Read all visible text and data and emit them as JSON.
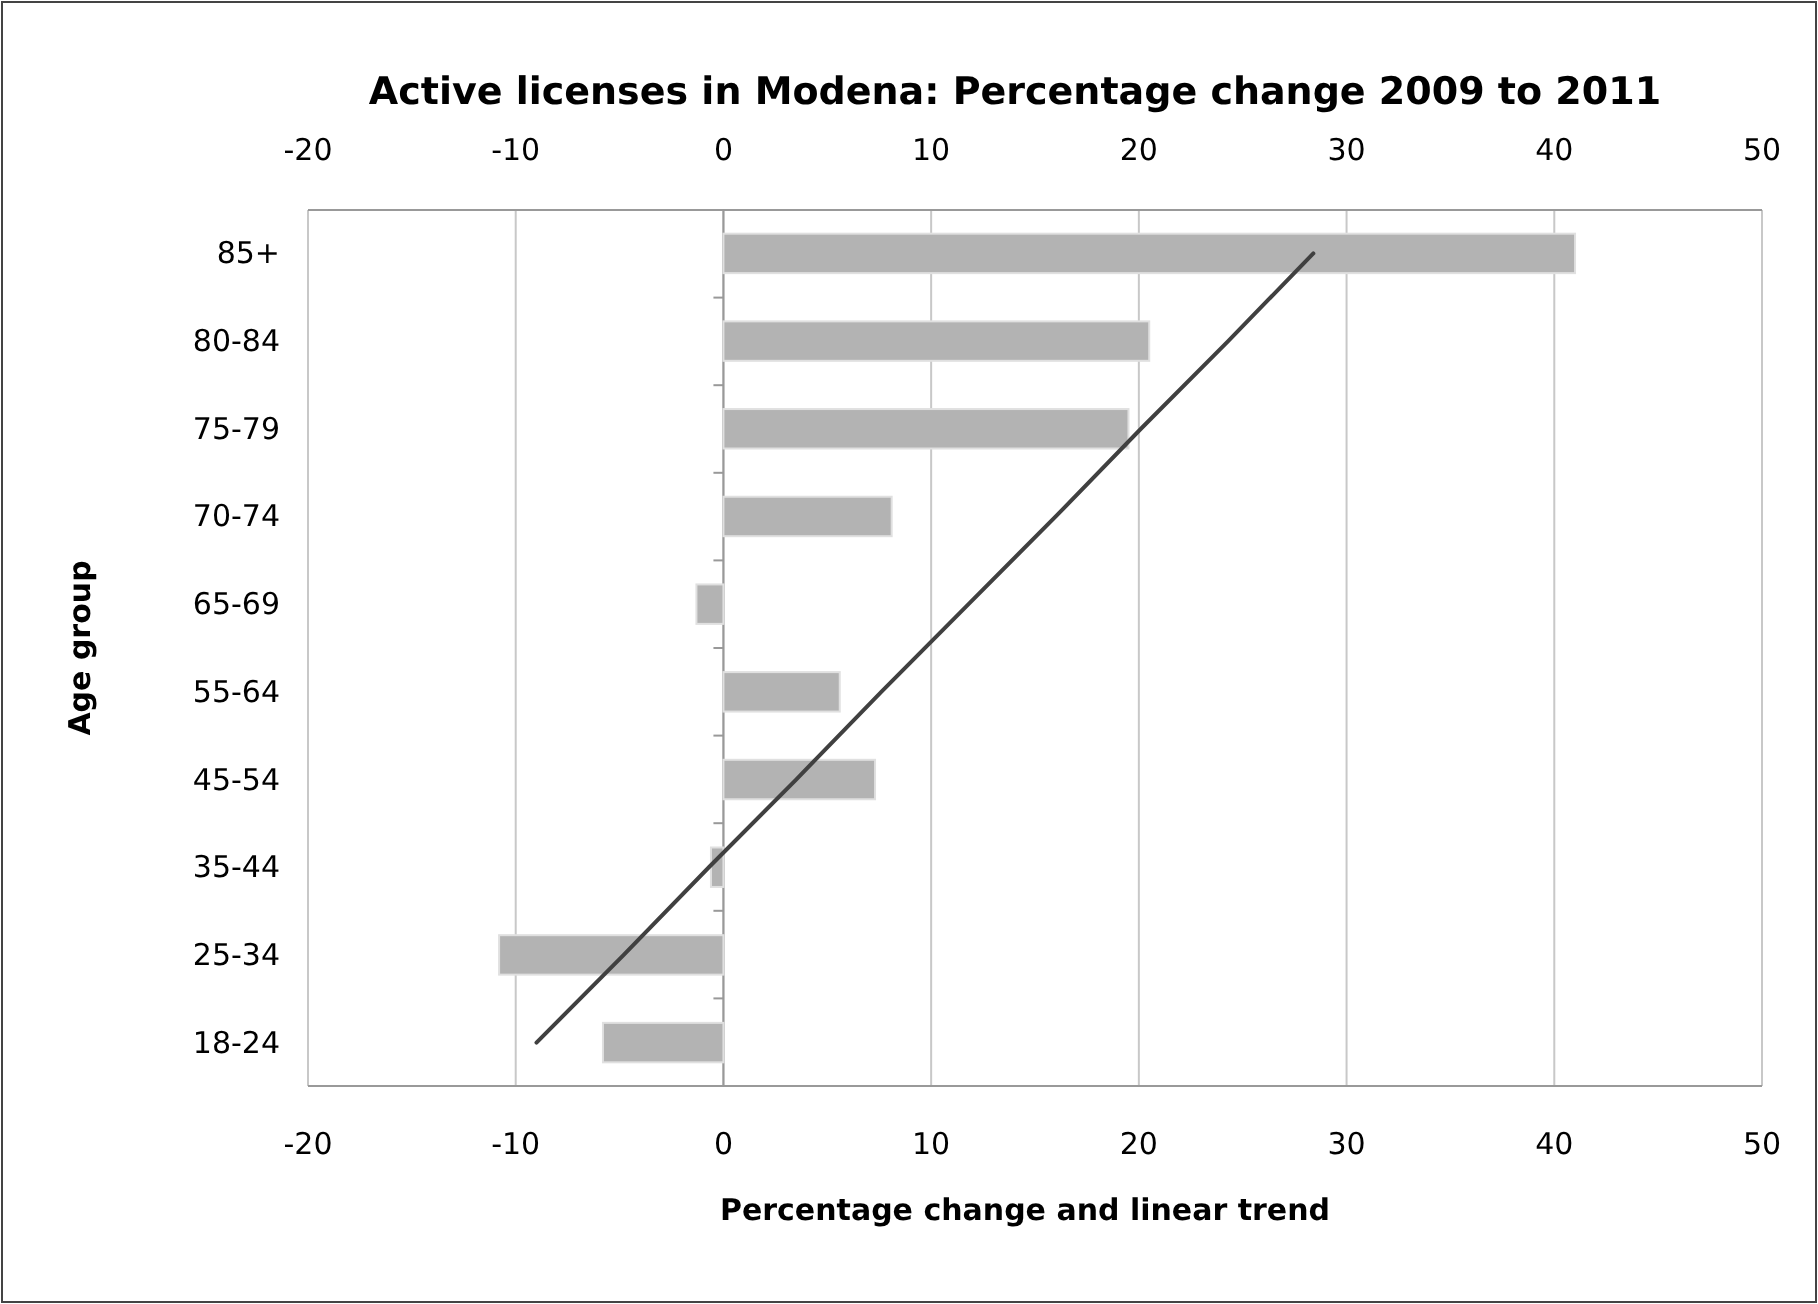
{
  "chart_data": {
    "type": "bar",
    "orientation": "horizontal",
    "title": "Active licenses in Modena: Percentage change 2009 to 2011",
    "xlabel": "Percentage change and linear trend",
    "ylabel": "Age group",
    "categories": [
      "85+",
      "80-84",
      "75-79",
      "70-74",
      "65-69",
      "55-64",
      "45-54",
      "35-44",
      "25-34",
      "18-24"
    ],
    "series": [
      {
        "color": "#b3b3b3",
        "values": [
          41,
          20.5,
          19.5,
          8.1,
          -1.3,
          5.6,
          7.3,
          -0.6,
          -10.8,
          -5.8
        ]
      },
      {
        "type": "line",
        "color": "#404040",
        "values": [
          28.4,
          24.3,
          20.1,
          16.0,
          11.8,
          7.6,
          3.5,
          -0.7,
          -4.8,
          -9.0
        ]
      }
    ],
    "xlim": [
      -20,
      50
    ],
    "xticks": [
      -20,
      -10,
      0,
      10,
      20,
      30,
      40,
      50
    ],
    "x2lim": [
      -20,
      50
    ],
    "x2ticks": [
      -20,
      -10,
      0,
      10,
      20,
      30,
      40,
      50
    ],
    "grid": "x"
  }
}
